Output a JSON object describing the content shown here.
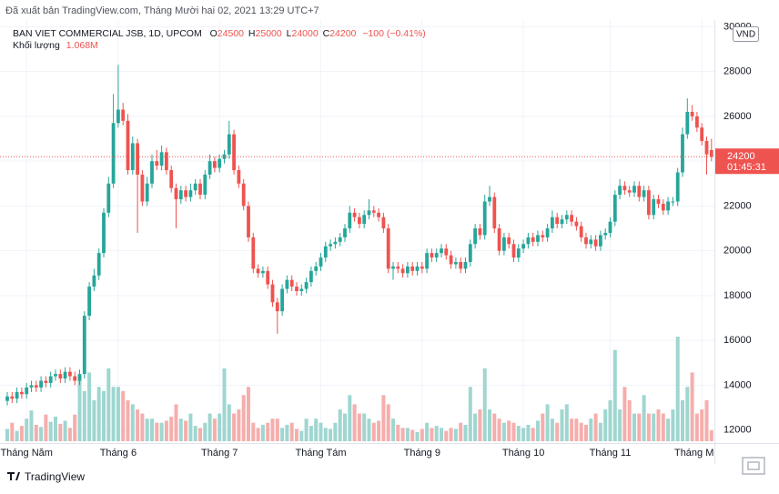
{
  "header": "Đã xuất bản TradingView.com, Tháng Mười hai 02, 2021 13:29 UTC+7",
  "footer": {
    "brand": "TradingView"
  },
  "chart_data": {
    "type": "candlestick",
    "title": "BAN VIET COMMERCIAL JSB, 1D, UPCOM",
    "ohlc_letters": [
      "O",
      "H",
      "L",
      "C"
    ],
    "change": "−100 (−0.41%)",
    "currency": "VND",
    "countdown": "01:45:31",
    "up_color": "#26a69a",
    "down_color": "#ef5350",
    "open": [
      13300,
      13500,
      13400,
      13700,
      13600,
      13900,
      14000,
      13900,
      14200,
      14100,
      14400,
      14500,
      14300,
      14600,
      14400,
      14200,
      14500,
      17100,
      18400,
      18900,
      19900,
      21700,
      23000,
      25700,
      26300,
      25800,
      23600,
      24800,
      23400,
      22200,
      23000,
      24000,
      23800,
      24400,
      23600,
      22800,
      22300,
      22700,
      22400,
      22700,
      23000,
      22500,
      23400,
      24000,
      23700,
      24100,
      24300,
      25200,
      23600,
      23000,
      22000,
      20600,
      19200,
      19000,
      19100,
      18500,
      17700,
      17300,
      18300,
      18700,
      18400,
      18200,
      18300,
      18600,
      19100,
      19300,
      19700,
      20200,
      20300,
      20400,
      20600,
      21000,
      21700,
      21500,
      21200,
      21600,
      21800,
      21700,
      21500,
      21000,
      19200,
      19300,
      19200,
      19000,
      19300,
      19100,
      19300,
      19200,
      19900,
      19700,
      19900,
      20100,
      19800,
      19400,
      19500,
      19200,
      19500,
      20300,
      21000,
      20700,
      22200,
      22400,
      21000,
      20000,
      20600,
      20300,
      19700,
      20100,
      20300,
      20600,
      20400,
      20700,
      20600,
      21000,
      21500,
      21200,
      21400,
      21600,
      21300,
      21100,
      20600,
      20300,
      20500,
      20200,
      20700,
      20800,
      21300,
      22500,
      22900,
      22700,
      22600,
      22900,
      22400,
      22700,
      21600,
      22300,
      22100,
      21800,
      22200,
      22200,
      23500,
      25200,
      26200,
      26000,
      25500,
      24900,
      24500
    ],
    "high": [
      13700,
      13700,
      13900,
      13900,
      14100,
      14200,
      14200,
      14400,
      14400,
      14600,
      14700,
      14700,
      14800,
      14800,
      14600,
      14700,
      17300,
      18600,
      19200,
      20100,
      21900,
      23300,
      27000,
      28300,
      26600,
      26100,
      25100,
      25000,
      23600,
      23300,
      24300,
      24500,
      24700,
      24600,
      23800,
      23000,
      22900,
      22900,
      23000,
      23200,
      23200,
      23600,
      24300,
      24200,
      24300,
      24500,
      25800,
      25400,
      23800,
      23200,
      22200,
      20800,
      19400,
      19300,
      19300,
      18700,
      17900,
      18500,
      18900,
      18900,
      18600,
      18500,
      18800,
      19300,
      19500,
      19900,
      20400,
      20500,
      20600,
      20800,
      21200,
      22000,
      21900,
      21700,
      21800,
      22300,
      22000,
      21900,
      21700,
      21200,
      19500,
      19500,
      19400,
      19500,
      19500,
      19500,
      19500,
      20100,
      20100,
      20100,
      20300,
      20300,
      20000,
      19700,
      19700,
      19700,
      20500,
      21200,
      21200,
      22500,
      22900,
      22600,
      21200,
      20800,
      20800,
      20500,
      20300,
      20500,
      20800,
      20800,
      20900,
      20900,
      21200,
      21800,
      21700,
      21600,
      21800,
      21800,
      21500,
      21300,
      20800,
      20700,
      20700,
      20900,
      21000,
      21500,
      22700,
      23200,
      23100,
      22900,
      23100,
      23100,
      22900,
      22900,
      22500,
      22500,
      22300,
      22400,
      22400,
      23700,
      25500,
      26800,
      26500,
      26200,
      25700,
      25100,
      25000
    ],
    "low": [
      13100,
      13200,
      13200,
      13400,
      13400,
      13700,
      13700,
      13700,
      13900,
      13900,
      14200,
      14100,
      14100,
      14200,
      14000,
      14000,
      14300,
      16900,
      18200,
      18700,
      19700,
      21500,
      22800,
      25500,
      25600,
      23400,
      23400,
      20800,
      22000,
      22000,
      22800,
      23600,
      23600,
      23400,
      22600,
      21000,
      22100,
      22200,
      22200,
      22500,
      22300,
      22300,
      23200,
      23500,
      23500,
      23900,
      24100,
      23400,
      22800,
      21800,
      20400,
      19000,
      18800,
      18800,
      18300,
      17500,
      16300,
      17100,
      18100,
      18200,
      18000,
      18000,
      18100,
      18400,
      18900,
      19100,
      19500,
      20000,
      20100,
      20200,
      20400,
      20800,
      21300,
      21000,
      21000,
      21400,
      21500,
      21300,
      20800,
      19000,
      18700,
      19000,
      18800,
      18800,
      18900,
      18900,
      19000,
      19000,
      19500,
      19500,
      19700,
      19600,
      19200,
      19200,
      19000,
      19000,
      19300,
      20100,
      20500,
      20500,
      22000,
      20800,
      19800,
      19800,
      20100,
      19500,
      19500,
      19900,
      20100,
      20200,
      20200,
      20400,
      20400,
      20800,
      21000,
      21000,
      21200,
      21100,
      20900,
      20400,
      20100,
      20100,
      20000,
      20000,
      20500,
      20600,
      21100,
      22300,
      22500,
      22400,
      22400,
      22200,
      22200,
      21400,
      21400,
      21900,
      21600,
      21600,
      22000,
      22000,
      23300,
      25000,
      25800,
      25300,
      24700,
      23400,
      24000
    ],
    "close": [
      13500,
      13400,
      13700,
      13600,
      13900,
      14000,
      13900,
      14200,
      14100,
      14400,
      14500,
      14300,
      14600,
      14400,
      14200,
      14500,
      17100,
      18400,
      18900,
      19900,
      21700,
      23000,
      25700,
      26300,
      25800,
      23600,
      24800,
      23400,
      22200,
      23000,
      24000,
      23800,
      24400,
      23600,
      22800,
      22300,
      22700,
      22400,
      22700,
      23000,
      22500,
      23400,
      24000,
      23700,
      24100,
      24300,
      25200,
      23600,
      23000,
      22000,
      20600,
      19200,
      19000,
      19100,
      18500,
      17700,
      17300,
      18300,
      18700,
      18400,
      18200,
      18300,
      18600,
      19100,
      19300,
      19700,
      20200,
      20300,
      20400,
      20600,
      21000,
      21700,
      21500,
      21200,
      21600,
      21800,
      21700,
      21500,
      21000,
      19200,
      19300,
      19200,
      19000,
      19300,
      19100,
      19300,
      19200,
      19900,
      19700,
      19900,
      20100,
      19800,
      19400,
      19500,
      19200,
      19500,
      20300,
      21000,
      20700,
      22200,
      22400,
      21000,
      20000,
      20600,
      20300,
      19700,
      20100,
      20300,
      20600,
      20400,
      20700,
      20600,
      21000,
      21500,
      21200,
      21400,
      21600,
      21300,
      21100,
      20600,
      20300,
      20500,
      20200,
      20700,
      20800,
      21300,
      22500,
      22900,
      22700,
      22600,
      22900,
      22400,
      22700,
      21600,
      22300,
      22100,
      21800,
      22200,
      22200,
      23500,
      25200,
      26200,
      26000,
      25500,
      24900,
      24300,
      24200
    ],
    "volume": {
      "name": "Khối lượng",
      "last_label": "1.068M",
      "up_color": "#9fd6d0",
      "down_color": "#f5aeac",
      "values": [
        1.2,
        1.8,
        1.0,
        1.5,
        2.2,
        3.0,
        1.6,
        1.4,
        2.6,
        1.9,
        2.4,
        1.7,
        2.0,
        1.3,
        2.6,
        6.2,
        4.9,
        6.7,
        4.0,
        5.3,
        4.9,
        7.1,
        5.3,
        5.3,
        4.9,
        4.0,
        3.6,
        3.1,
        2.7,
        2.2,
        2.2,
        1.8,
        1.8,
        2.0,
        2.4,
        3.6,
        2.2,
        2.0,
        2.7,
        1.5,
        1.3,
        1.8,
        2.7,
        2.2,
        2.7,
        7.1,
        3.6,
        2.7,
        3.1,
        4.5,
        5.3,
        1.8,
        1.3,
        1.6,
        1.8,
        2.2,
        2.2,
        1.3,
        1.6,
        1.8,
        1.2,
        1.0,
        2.2,
        1.5,
        2.2,
        1.8,
        1.3,
        1.2,
        1.8,
        3.1,
        2.7,
        4.5,
        3.6,
        2.7,
        2.7,
        2.2,
        1.8,
        2.0,
        4.5,
        3.6,
        2.2,
        1.6,
        1.3,
        1.3,
        1.1,
        0.9,
        1.2,
        1.8,
        1.3,
        1.5,
        1.3,
        1.0,
        1.3,
        1.2,
        1.8,
        1.6,
        5.3,
        2.7,
        3.1,
        7.1,
        3.1,
        2.7,
        2.2,
        1.8,
        2.0,
        1.8,
        1.5,
        1.3,
        1.6,
        1.3,
        2.0,
        2.7,
        3.6,
        2.2,
        1.8,
        3.1,
        3.6,
        2.2,
        2.2,
        1.8,
        1.6,
        2.2,
        2.7,
        1.8,
        3.1,
        4.0,
        8.9,
        3.1,
        5.3,
        4.0,
        2.7,
        2.7,
        4.5,
        2.7,
        2.7,
        3.1,
        2.7,
        2.2,
        3.1,
        10.2,
        4.0,
        5.3,
        6.7,
        2.7,
        3.1,
        4.0,
        1.068
      ]
    },
    "ylim": [
      11500,
      30300
    ],
    "yticks": [
      12000,
      14000,
      16000,
      18000,
      20000,
      22000,
      24000,
      26000,
      28000,
      30000
    ],
    "xticks": [
      {
        "value": 4,
        "label": "Tháng Năm"
      },
      {
        "value": 23,
        "label": "Tháng 6"
      },
      {
        "value": 44,
        "label": "Tháng 7"
      },
      {
        "value": 65,
        "label": "Tháng Tám"
      },
      {
        "value": 86,
        "label": "Tháng 9"
      },
      {
        "value": 107,
        "label": "Tháng 10"
      },
      {
        "value": 125,
        "label": "Tháng 11"
      },
      {
        "value": 144,
        "label": "Tháng Mười"
      }
    ],
    "grid": true
  }
}
